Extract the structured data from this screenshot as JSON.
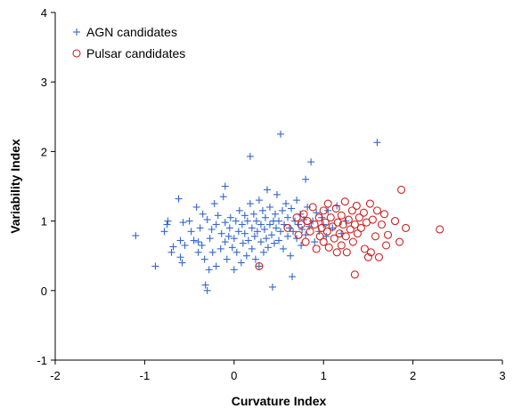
{
  "chart_data": {
    "type": "scatter",
    "title": "",
    "xlabel": "Curvature Index",
    "ylabel": "Variability Index",
    "xlim": [
      -2,
      3
    ],
    "ylim": [
      -1,
      4
    ],
    "xticks": [
      "-2",
      "-1",
      "0",
      "1",
      "2",
      "3"
    ],
    "yticks": [
      "-1",
      "0",
      "1",
      "2",
      "3",
      "4"
    ],
    "grid": false,
    "legend_position": "top-left",
    "series": [
      {
        "name": "AGN candidates",
        "marker": "plus",
        "color": "#3366cc",
        "points": [
          [
            -1.1,
            0.79
          ],
          [
            -0.88,
            0.35
          ],
          [
            -0.78,
            0.85
          ],
          [
            -0.75,
            0.95
          ],
          [
            -0.74,
            1.0
          ],
          [
            -0.7,
            0.55
          ],
          [
            -0.68,
            0.63
          ],
          [
            -0.62,
            1.32
          ],
          [
            -0.6,
            0.72
          ],
          [
            -0.6,
            0.48
          ],
          [
            -0.58,
            0.4
          ],
          [
            -0.57,
            0.98
          ],
          [
            -0.55,
            0.65
          ],
          [
            -0.5,
            1.0
          ],
          [
            -0.48,
            0.85
          ],
          [
            -0.45,
            0.72
          ],
          [
            -0.42,
            1.2
          ],
          [
            -0.4,
            0.55
          ],
          [
            -0.4,
            0.7
          ],
          [
            -0.38,
            0.9
          ],
          [
            -0.36,
            0.65
          ],
          [
            -0.35,
            1.1
          ],
          [
            -0.33,
            0.45
          ],
          [
            -0.32,
            0.08
          ],
          [
            -0.3,
            0.0
          ],
          [
            -0.3,
            1.02
          ],
          [
            -0.28,
            0.3
          ],
          [
            -0.27,
            0.75
          ],
          [
            -0.25,
            0.88
          ],
          [
            -0.24,
            0.55
          ],
          [
            -0.22,
            1.25
          ],
          [
            -0.2,
            0.95
          ],
          [
            -0.2,
            0.35
          ],
          [
            -0.18,
            1.08
          ],
          [
            -0.15,
            0.6
          ],
          [
            -0.14,
            0.82
          ],
          [
            -0.12,
            1.35
          ],
          [
            -0.1,
            0.98
          ],
          [
            -0.1,
            0.7
          ],
          [
            -0.08,
            0.45
          ],
          [
            -0.06,
            0.78
          ],
          [
            -0.05,
            0.9
          ],
          [
            -0.04,
            1.05
          ],
          [
            -0.02,
            0.62
          ],
          [
            0.0,
            0.75
          ],
          [
            -0.1,
            1.5
          ],
          [
            0.0,
            0.3
          ],
          [
            0.02,
            1.0
          ],
          [
            0.03,
            0.55
          ],
          [
            0.05,
            0.85
          ],
          [
            0.06,
            1.15
          ],
          [
            0.08,
            0.4
          ],
          [
            0.09,
            0.95
          ],
          [
            0.1,
            0.68
          ],
          [
            0.12,
            1.08
          ],
          [
            0.12,
            0.82
          ],
          [
            0.14,
            0.5
          ],
          [
            0.15,
            1.0
          ],
          [
            0.16,
            0.72
          ],
          [
            0.18,
            1.25
          ],
          [
            0.18,
            1.93
          ],
          [
            0.2,
            0.9
          ],
          [
            0.2,
            0.6
          ],
          [
            0.22,
            1.1
          ],
          [
            0.23,
            0.78
          ],
          [
            0.24,
            0.45
          ],
          [
            0.25,
            1.0
          ],
          [
            0.26,
            0.85
          ],
          [
            0.28,
            0.35
          ],
          [
            0.28,
            1.3
          ],
          [
            0.3,
            0.95
          ],
          [
            0.3,
            0.7
          ],
          [
            0.32,
            1.15
          ],
          [
            0.33,
            0.55
          ],
          [
            0.34,
            0.88
          ],
          [
            0.35,
            1.05
          ],
          [
            0.36,
            0.75
          ],
          [
            0.37,
            1.45
          ],
          [
            0.38,
            0.62
          ],
          [
            0.4,
            0.95
          ],
          [
            0.4,
            1.2
          ],
          [
            0.42,
            0.8
          ],
          [
            0.43,
            0.05
          ],
          [
            0.44,
            1.0
          ],
          [
            0.45,
            0.68
          ],
          [
            0.46,
            1.1
          ],
          [
            0.47,
            0.9
          ],
          [
            0.48,
            1.38
          ],
          [
            0.5,
            0.72
          ],
          [
            0.5,
            1.0
          ],
          [
            0.52,
            2.25
          ],
          [
            0.52,
            0.85
          ],
          [
            0.54,
            1.15
          ],
          [
            0.55,
            0.6
          ],
          [
            0.56,
            0.95
          ],
          [
            0.58,
            1.25
          ],
          [
            0.6,
            0.78
          ],
          [
            0.6,
            1.05
          ],
          [
            0.62,
            0.9
          ],
          [
            0.63,
            0.5
          ],
          [
            0.64,
            1.18
          ],
          [
            0.65,
            0.2
          ],
          [
            0.66,
            0.85
          ],
          [
            0.68,
            1.0
          ],
          [
            0.7,
            1.3
          ],
          [
            0.7,
            0.75
          ],
          [
            0.72,
            0.95
          ],
          [
            0.74,
            1.1
          ],
          [
            0.75,
            0.65
          ],
          [
            0.76,
            0.88
          ],
          [
            0.78,
            1.02
          ],
          [
            0.8,
            1.6
          ],
          [
            0.8,
            0.8
          ],
          [
            0.82,
            1.2
          ],
          [
            0.84,
            0.92
          ],
          [
            0.86,
            1.85
          ],
          [
            0.88,
            1.0
          ],
          [
            0.9,
            0.7
          ],
          [
            0.92,
            1.12
          ],
          [
            0.95,
            0.85
          ],
          [
            0.98,
            1.05
          ],
          [
            1.0,
            0.95
          ],
          [
            1.03,
            0.78
          ],
          [
            1.05,
            1.15
          ],
          [
            1.1,
            0.9
          ],
          [
            1.15,
            1.22
          ],
          [
            1.2,
            0.82
          ],
          [
            1.25,
            1.0
          ],
          [
            1.6,
            2.13
          ]
        ]
      },
      {
        "name": "Pulsar candidates",
        "marker": "circle",
        "color": "#cc2222",
        "points": [
          [
            0.28,
            0.35
          ],
          [
            0.6,
            0.9
          ],
          [
            0.7,
            1.05
          ],
          [
            0.72,
            0.8
          ],
          [
            0.75,
            0.95
          ],
          [
            0.78,
            1.1
          ],
          [
            0.8,
            0.7
          ],
          [
            0.82,
            1.0
          ],
          [
            0.85,
            0.85
          ],
          [
            0.88,
            1.2
          ],
          [
            0.9,
            0.95
          ],
          [
            0.92,
            0.6
          ],
          [
            0.95,
            1.05
          ],
          [
            0.96,
            0.78
          ],
          [
            0.98,
            0.9
          ],
          [
            1.0,
            1.15
          ],
          [
            1.0,
            0.7
          ],
          [
            1.02,
            0.98
          ],
          [
            1.04,
            0.85
          ],
          [
            1.05,
            1.25
          ],
          [
            1.06,
            0.62
          ],
          [
            1.08,
            1.05
          ],
          [
            1.1,
            0.92
          ],
          [
            1.12,
            0.75
          ],
          [
            1.14,
            1.18
          ],
          [
            1.15,
            0.55
          ],
          [
            1.16,
            0.98
          ],
          [
            1.18,
            0.82
          ],
          [
            1.2,
            1.08
          ],
          [
            1.2,
            0.65
          ],
          [
            1.22,
            0.95
          ],
          [
            1.24,
            1.28
          ],
          [
            1.25,
            0.78
          ],
          [
            1.26,
            0.55
          ],
          [
            1.28,
            1.02
          ],
          [
            1.3,
            0.88
          ],
          [
            1.32,
            1.15
          ],
          [
            1.33,
            0.7
          ],
          [
            1.35,
            0.95
          ],
          [
            1.35,
            0.23
          ],
          [
            1.37,
            1.22
          ],
          [
            1.38,
            0.82
          ],
          [
            1.4,
            1.05
          ],
          [
            1.42,
            0.9
          ],
          [
            1.45,
            1.12
          ],
          [
            1.46,
            0.6
          ],
          [
            1.48,
            0.98
          ],
          [
            1.5,
            0.48
          ],
          [
            1.52,
            1.25
          ],
          [
            1.53,
            0.55
          ],
          [
            1.55,
            1.02
          ],
          [
            1.58,
            0.78
          ],
          [
            1.6,
            1.15
          ],
          [
            1.62,
            0.48
          ],
          [
            1.65,
            0.95
          ],
          [
            1.68,
            1.1
          ],
          [
            1.7,
            0.65
          ],
          [
            1.72,
            0.8
          ],
          [
            1.8,
            1.0
          ],
          [
            1.85,
            0.7
          ],
          [
            1.87,
            1.45
          ],
          [
            1.92,
            0.9
          ],
          [
            2.3,
            0.88
          ]
        ]
      }
    ]
  }
}
